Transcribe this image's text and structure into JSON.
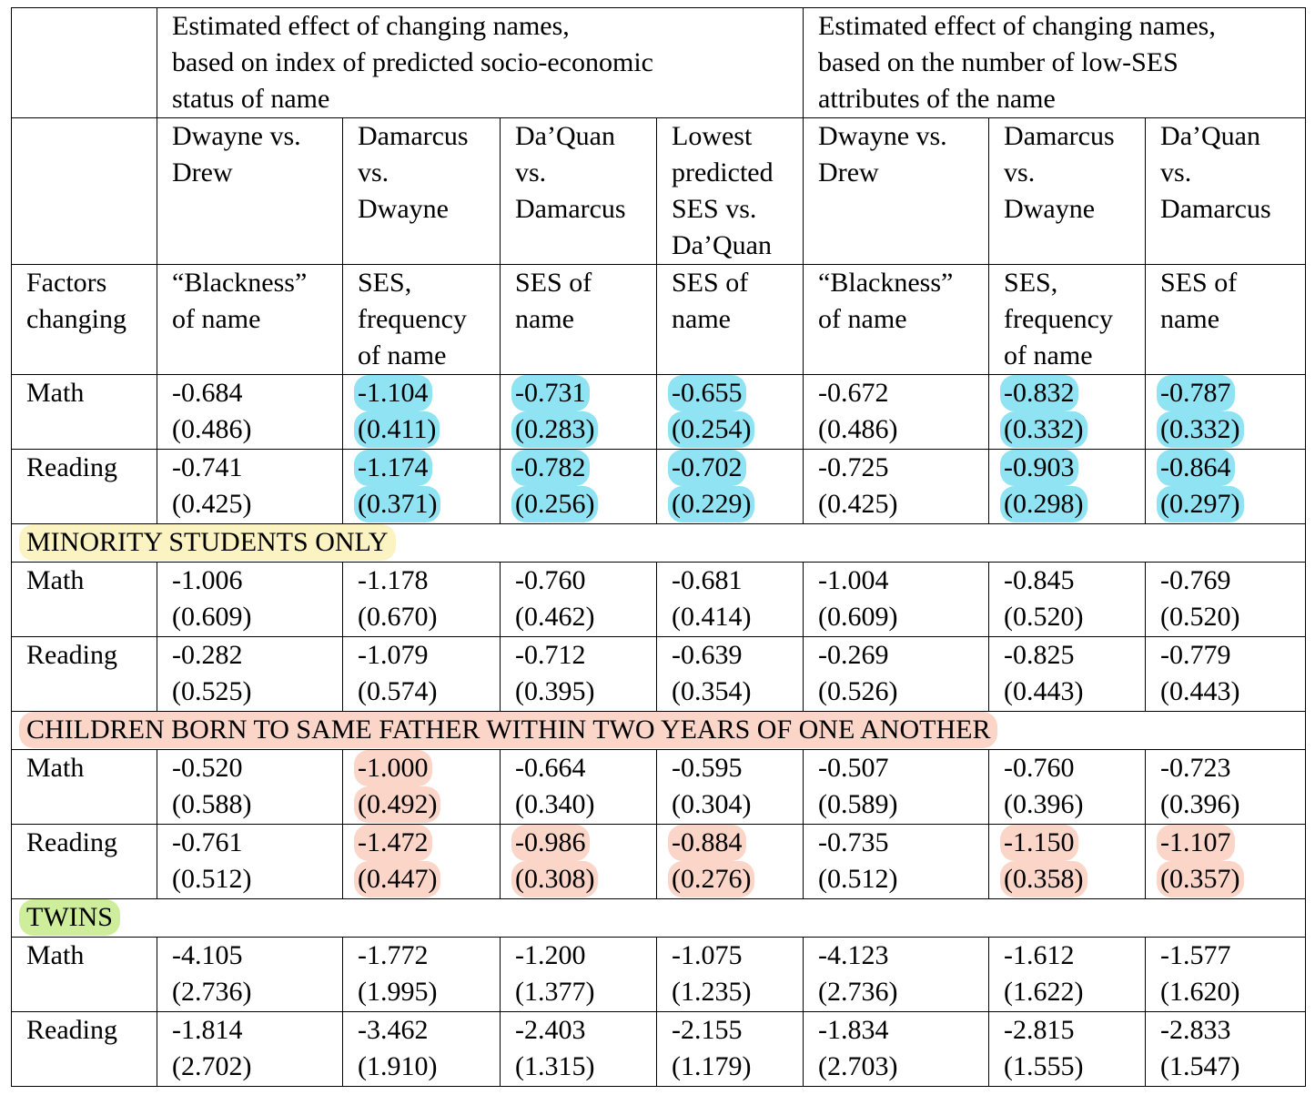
{
  "headers": {
    "group1": "Estimated effect of changing names,\nbased on index of predicted socio-economic\nstatus of name",
    "group2": "Estimated effect of changing names,\nbased on the number of low-SES\nattributes of the name",
    "comparisons": [
      "Dwayne vs.\nDrew",
      "Damarcus\nvs.\nDwayne",
      "Da’Quan\nvs.\nDamarcus",
      "Lowest\npredicted\nSES vs.\nDa’Quan",
      "Dwayne vs.\nDrew",
      "Damarcus\nvs.\nDwayne",
      "Da’Quan\nvs.\nDamarcus"
    ],
    "factors_label": "Factors\nchanging",
    "factors": [
      "“Blackness”\nof name",
      "SES,\nfrequency\nof name",
      "SES of\nname",
      "SES of\nname",
      "“Blackness”\nof name",
      "SES,\nfrequency\nof name",
      "SES of\nname"
    ]
  },
  "sections": [
    {
      "title": "",
      "rows": [
        {
          "label": "Math",
          "cells": [
            [
              "-0.684",
              "(0.486)"
            ],
            [
              "-1.104",
              "(0.411)"
            ],
            [
              "-0.731",
              "(0.283)"
            ],
            [
              "-0.655",
              "(0.254)"
            ],
            [
              "-0.672",
              "(0.486)"
            ],
            [
              "-0.832",
              "(0.332)"
            ],
            [
              "-0.787",
              "(0.332)"
            ]
          ]
        },
        {
          "label": "Reading",
          "cells": [
            [
              "-0.741",
              "(0.425)"
            ],
            [
              "-1.174",
              "(0.371)"
            ],
            [
              "-0.782",
              "(0.256)"
            ],
            [
              "-0.702",
              "(0.229)"
            ],
            [
              "-0.725",
              "(0.425)"
            ],
            [
              "-0.903",
              "(0.298)"
            ],
            [
              "-0.864",
              "(0.297)"
            ]
          ]
        }
      ]
    },
    {
      "title": "MINORITY STUDENTS ONLY",
      "rows": [
        {
          "label": "Math",
          "cells": [
            [
              "-1.006",
              "(0.609)"
            ],
            [
              "-1.178",
              "(0.670)"
            ],
            [
              "-0.760",
              "(0.462)"
            ],
            [
              "-0.681",
              "(0.414)"
            ],
            [
              "-1.004",
              "(0.609)"
            ],
            [
              "-0.845",
              "(0.520)"
            ],
            [
              "-0.769",
              "(0.520)"
            ]
          ]
        },
        {
          "label": "Reading",
          "cells": [
            [
              "-0.282",
              "(0.525)"
            ],
            [
              "-1.079",
              "(0.574)"
            ],
            [
              "-0.712",
              "(0.395)"
            ],
            [
              "-0.639",
              "(0.354)"
            ],
            [
              "-0.269",
              "(0.526)"
            ],
            [
              "-0.825",
              "(0.443)"
            ],
            [
              "-0.779",
              "(0.443)"
            ]
          ]
        }
      ]
    },
    {
      "title": "CHILDREN BORN TO SAME FATHER WITHIN TWO YEARS OF ONE ANOTHER",
      "rows": [
        {
          "label": "Math",
          "cells": [
            [
              "-0.520",
              "(0.588)"
            ],
            [
              "-1.000",
              "(0.492)"
            ],
            [
              "-0.664",
              "(0.340)"
            ],
            [
              "-0.595",
              "(0.304)"
            ],
            [
              "-0.507",
              "(0.589)"
            ],
            [
              "-0.760",
              "(0.396)"
            ],
            [
              "-0.723",
              "(0.396)"
            ]
          ]
        },
        {
          "label": "Reading",
          "cells": [
            [
              "-0.761",
              "(0.512)"
            ],
            [
              "-1.472",
              "(0.447)"
            ],
            [
              "-0.986",
              "(0.308)"
            ],
            [
              "-0.884",
              "(0.276)"
            ],
            [
              "-0.735",
              "(0.512)"
            ],
            [
              "-1.150",
              "(0.358)"
            ],
            [
              "-1.107",
              "(0.357)"
            ]
          ]
        }
      ]
    },
    {
      "title": "TWINS",
      "rows": [
        {
          "label": "Math",
          "cells": [
            [
              "-4.105",
              "(2.736)"
            ],
            [
              "-1.772",
              "(1.995)"
            ],
            [
              "-1.200",
              "(1.377)"
            ],
            [
              "-1.075",
              "(1.235)"
            ],
            [
              "-4.123",
              "(2.736)"
            ],
            [
              "-1.612",
              "(1.622)"
            ],
            [
              "-1.577",
              "(1.620)"
            ]
          ]
        },
        {
          "label": "Reading",
          "cells": [
            [
              "-1.814",
              "(2.702)"
            ],
            [
              "-3.462",
              "(1.910)"
            ],
            [
              "-2.403",
              "(1.315)"
            ],
            [
              "-2.155",
              "(1.179)"
            ],
            [
              "-1.834",
              "(2.703)"
            ],
            [
              "-2.815",
              "(1.555)"
            ],
            [
              "-2.833",
              "(1.547)"
            ]
          ]
        }
      ]
    }
  ],
  "highlights": {
    "blue": "#8fe3f3",
    "pink": "#fbd6c8",
    "yellow": "#fcf3c3",
    "green": "#cfee9b"
  }
}
